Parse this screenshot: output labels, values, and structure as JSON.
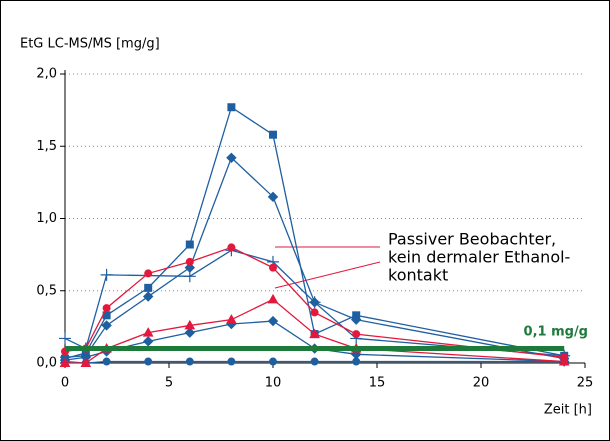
{
  "chart_data": {
    "type": "line",
    "y_label": "EtG LC-MS/MS [mg/g]",
    "x_label": "Zeit [h]",
    "xlim": [
      0,
      25
    ],
    "xticks": [
      0,
      5,
      10,
      15,
      20,
      25
    ],
    "ylim": [
      0,
      2
    ],
    "yticks": [
      {
        "value": 0,
        "label": "0,0"
      },
      {
        "value": 0.5,
        "label": "0,5"
      },
      {
        "value": 1,
        "label": "1,0"
      },
      {
        "value": 1.5,
        "label": "1,5"
      },
      {
        "value": 2,
        "label": "2,0"
      }
    ],
    "grid": true,
    "annotation": [
      "Passiver Beobachter,",
      "kein dermaler Ethanol-",
      "kontakt"
    ],
    "threshold_label": "0,1 mg/g",
    "series": [
      {
        "color": "#1f5fa0",
        "marker": "square",
        "x": [
          0,
          1,
          2,
          4,
          6,
          8,
          10,
          12,
          14,
          24
        ],
        "values": [
          0.03,
          0.07,
          0.33,
          0.52,
          0.82,
          1.77,
          1.58,
          0.2,
          0.33,
          0.05
        ]
      },
      {
        "color": "#1f5fa0",
        "marker": "diamond",
        "x": [
          0,
          1,
          2,
          4,
          6,
          8,
          10,
          12,
          14,
          24
        ],
        "values": [
          0.04,
          0.05,
          0.26,
          0.46,
          0.66,
          1.42,
          1.15,
          0.42,
          0.3,
          0.03
        ]
      },
      {
        "color": "#1f5fa0",
        "marker": "plus",
        "x": [
          0,
          1,
          2,
          6,
          8,
          10,
          12,
          14,
          24
        ],
        "values": [
          0.17,
          0.1,
          0.61,
          0.6,
          0.78,
          0.7,
          0.42,
          0.17,
          0.05
        ]
      },
      {
        "color": "#1f5fa0",
        "marker": "diamond",
        "x": [
          0,
          1,
          2,
          4,
          6,
          8,
          10,
          12,
          14,
          24
        ],
        "values": [
          0.02,
          0.04,
          0.08,
          0.15,
          0.21,
          0.27,
          0.29,
          0.1,
          0.06,
          0.01
        ]
      },
      {
        "color": "#1f5fa0",
        "marker": "circle",
        "x": [
          0,
          1,
          2,
          4,
          6,
          8,
          10,
          12,
          14,
          24
        ],
        "values": [
          0.01,
          0.0,
          0.01,
          0.01,
          0.01,
          0.01,
          0.01,
          0.01,
          0.01,
          0.01
        ]
      },
      {
        "color": "#e3183c",
        "marker": "circle",
        "x": [
          0,
          1,
          2,
          4,
          6,
          8,
          10,
          12,
          14,
          24
        ],
        "values": [
          0.08,
          0.1,
          0.38,
          0.62,
          0.7,
          0.8,
          0.66,
          0.35,
          0.2,
          0.04
        ]
      },
      {
        "color": "#e3183c",
        "marker": "triangle",
        "x": [
          0,
          1,
          2,
          4,
          6,
          8,
          10,
          12,
          14,
          24
        ],
        "values": [
          0.0,
          0.0,
          0.1,
          0.21,
          0.26,
          0.3,
          0.44,
          0.2,
          0.1,
          0.01
        ]
      },
      {
        "color": "#1e7a3a",
        "marker": "none",
        "width": 5,
        "x": [
          0,
          24
        ],
        "values": [
          0.1,
          0.1
        ]
      }
    ]
  }
}
